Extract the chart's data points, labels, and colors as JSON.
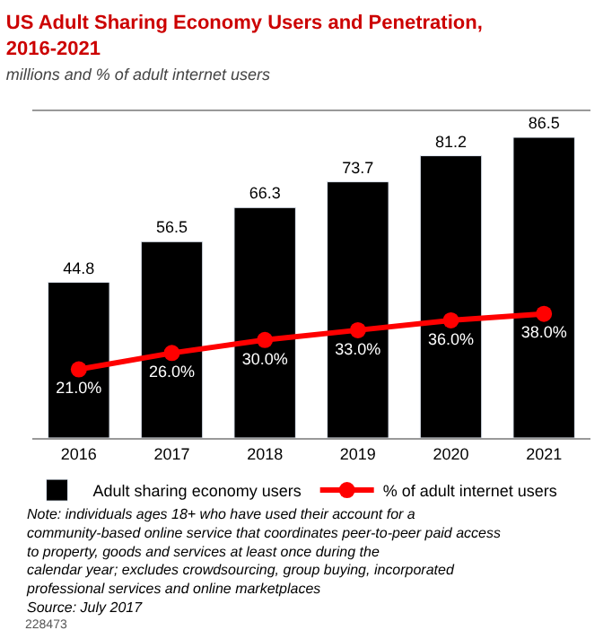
{
  "chart_data": {
    "type": "bar",
    "title": "US Adult Sharing Economy Users and Penetration,\n2016-2021",
    "subtitle": "millions and % of adult internet users",
    "categories": [
      "2016",
      "2017",
      "2018",
      "2019",
      "2020",
      "2021"
    ],
    "series": [
      {
        "name": "Adult sharing economy users",
        "color": "#000000",
        "values": [
          44.8,
          56.5,
          66.3,
          73.7,
          81.2,
          86.5
        ]
      },
      {
        "name": "% of adult internet users",
        "type": "line",
        "axis": "y2",
        "color": "#ff0000",
        "marker": "circle",
        "value_labels": [
          "21.0%",
          "26.0%",
          "30.0%",
          "33.0%",
          "36.0%",
          "38.0%"
        ],
        "values": [
          21.0,
          26.0,
          30.0,
          33.0,
          36.0,
          38.0
        ]
      }
    ],
    "ylim": [
      0,
      94
    ],
    "y2lim": [
      0,
      100
    ],
    "tick_labels": "x",
    "data_labels": true,
    "legend": "bottom",
    "annotations": [
      "Note: individuals ages 18+ who have used their account for a\ncommunity-based online service that coordinates peer-to-peer paid access\nto property, goods and services at least once during the\ncalendar year; excludes crowdsourcing, group buying, incorporated\nprofessional services and online marketplaces\nSource: July 2017",
      "228473"
    ]
  }
}
